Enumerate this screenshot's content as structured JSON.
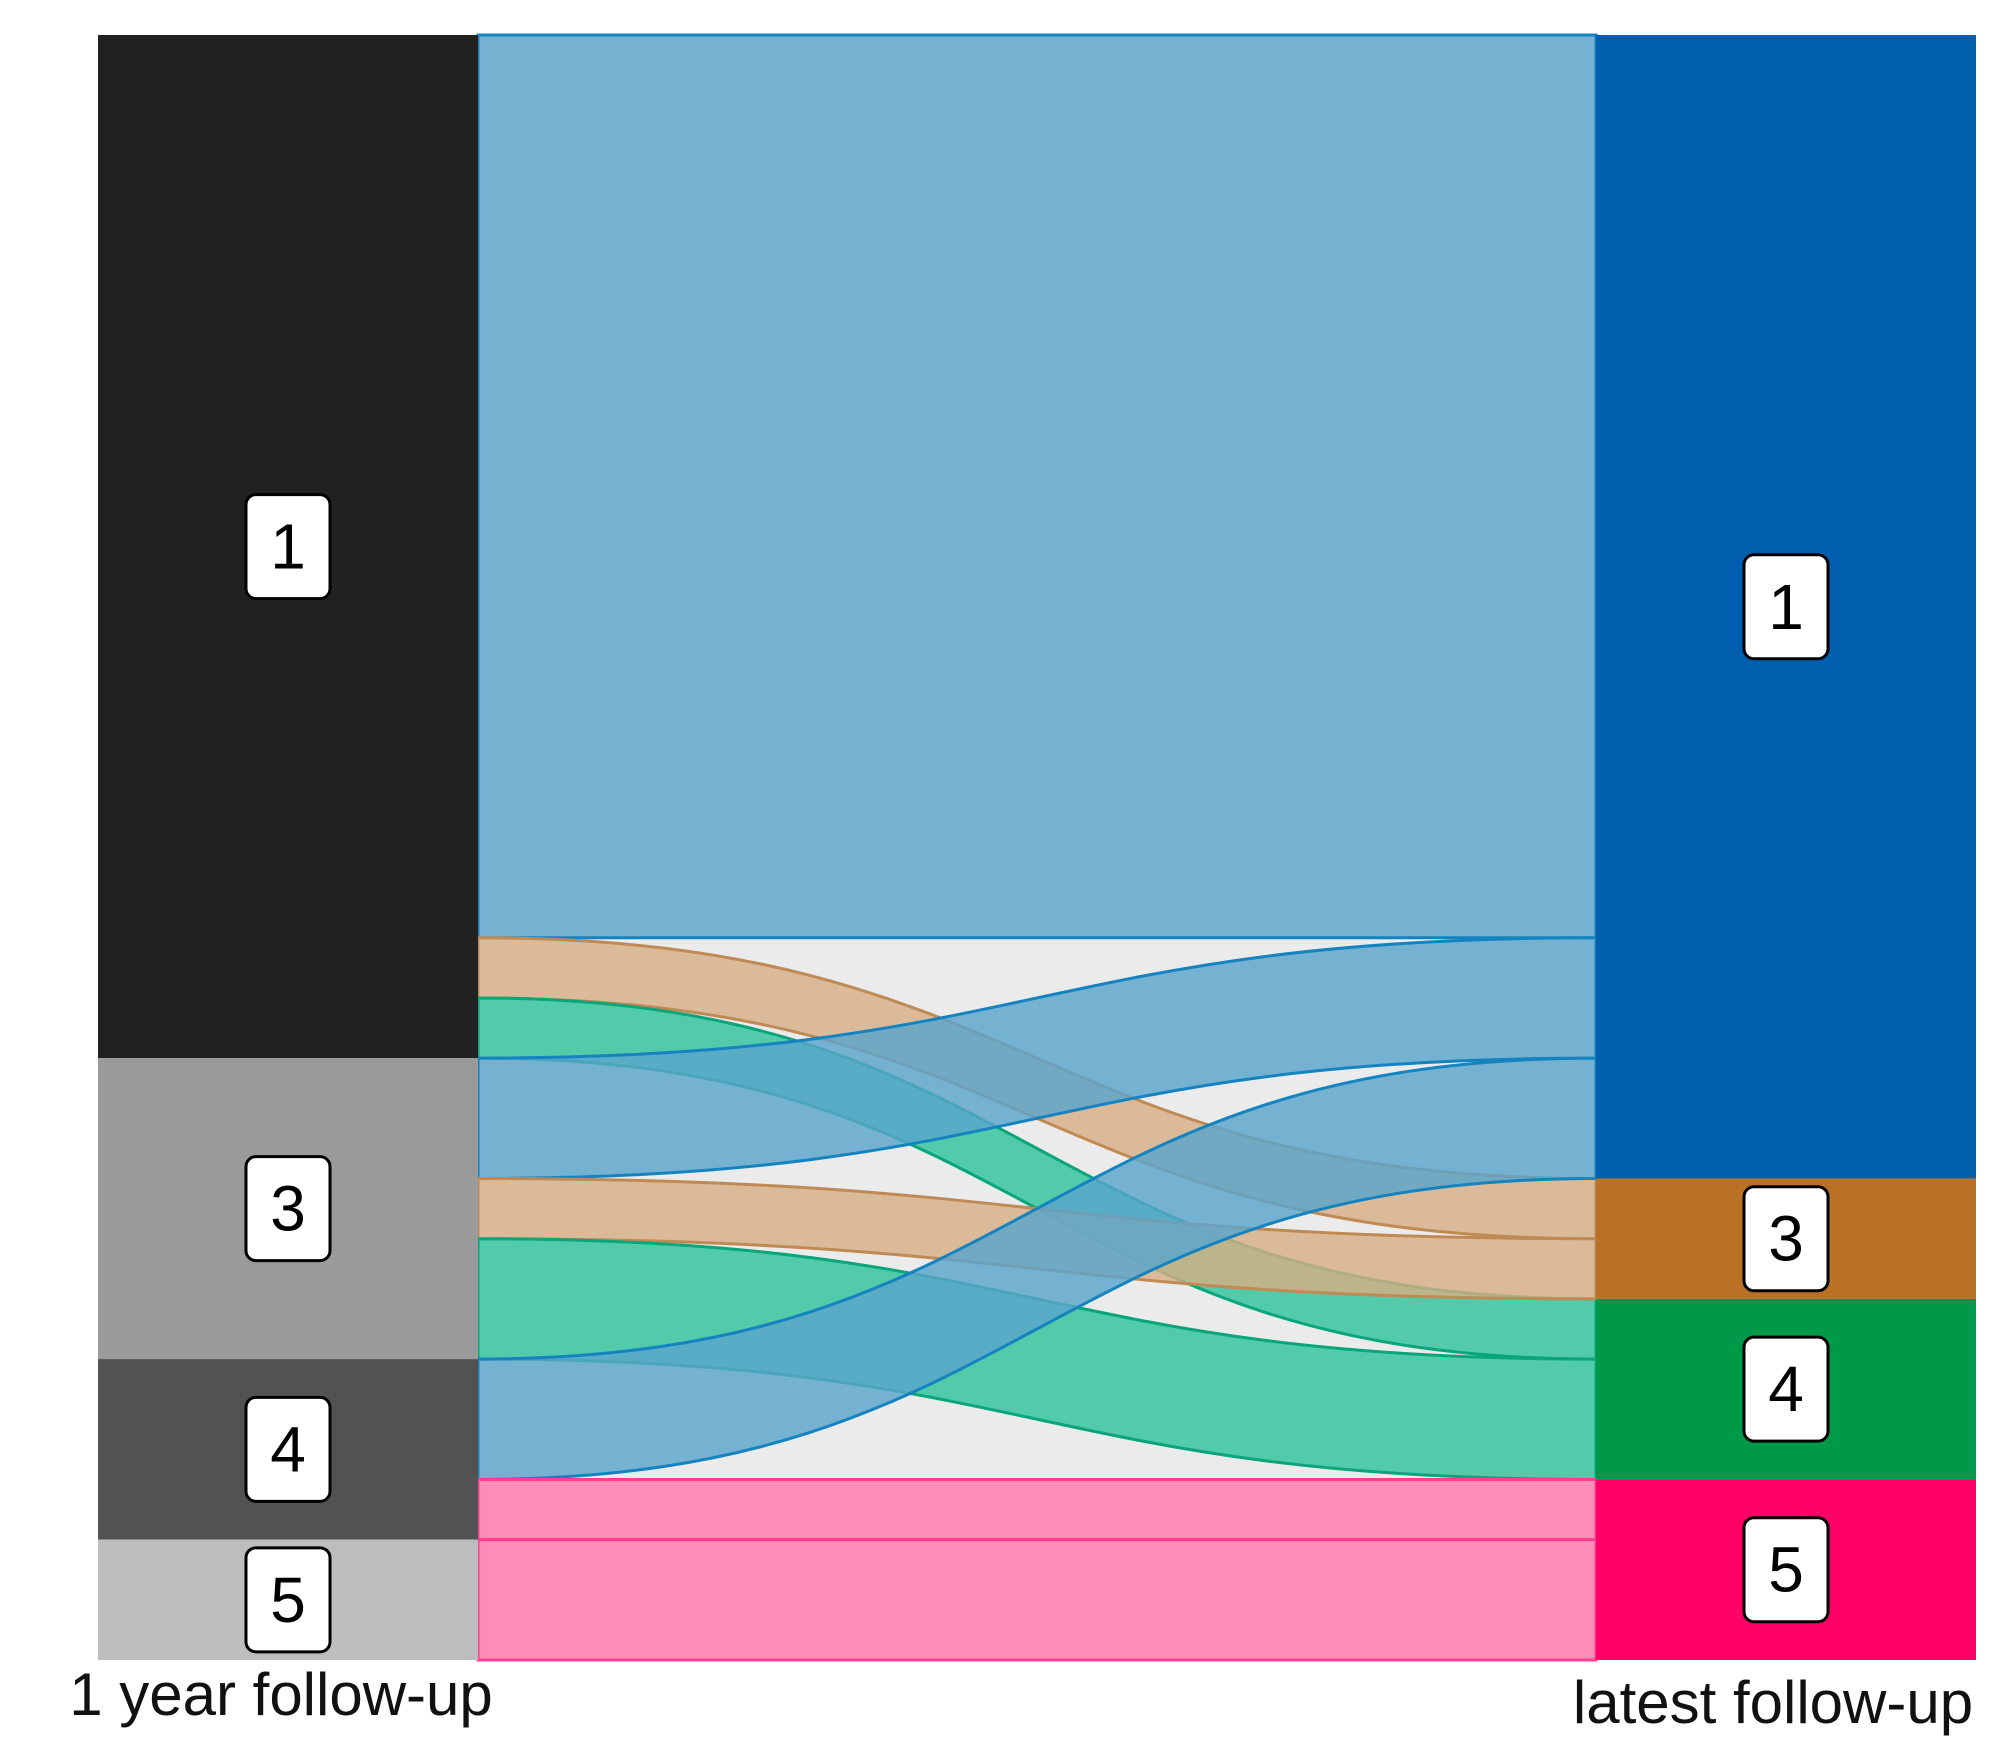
{
  "chart_data": {
    "type": "alluvial",
    "axes": [
      "1 year follow-up",
      "latest follow-up"
    ],
    "left_nodes": [
      {
        "label": "1",
        "value": 17,
        "color": "#212121"
      },
      {
        "label": "3",
        "value": 5,
        "color": "#9a9a9a"
      },
      {
        "label": "4",
        "value": 3,
        "color": "#525252"
      },
      {
        "label": "5",
        "value": 2,
        "color": "#bdbdbd"
      }
    ],
    "right_nodes": [
      {
        "label": "1",
        "value": 19,
        "color": "#005eae"
      },
      {
        "label": "3",
        "value": 2,
        "color": "#b87125"
      },
      {
        "label": "4",
        "value": 3,
        "color": "#00994a"
      },
      {
        "label": "5",
        "value": 3,
        "color": "#ff0066"
      }
    ],
    "flows": [
      {
        "from": "1",
        "to": "1",
        "value": 15
      },
      {
        "from": "1",
        "to": "3",
        "value": 1
      },
      {
        "from": "1",
        "to": "4",
        "value": 1
      },
      {
        "from": "3",
        "to": "1",
        "value": 2
      },
      {
        "from": "3",
        "to": "3",
        "value": 1
      },
      {
        "from": "3",
        "to": "4",
        "value": 2
      },
      {
        "from": "4",
        "to": "1",
        "value": 2
      },
      {
        "from": "4",
        "to": "5",
        "value": 1
      },
      {
        "from": "5",
        "to": "5",
        "value": 2
      }
    ],
    "flow_colors": {
      "1": {
        "fill": "#5aa5cc",
        "stroke": "#1583c0"
      },
      "3": {
        "fill": "#d6ae85",
        "stroke": "#c08a55"
      },
      "4": {
        "fill": "#2ec39a",
        "stroke": "#0aa57a"
      },
      "5": {
        "fill": "#ff78aa",
        "stroke": "#ff3f8f"
      }
    },
    "background_color": "#ebebeb"
  }
}
